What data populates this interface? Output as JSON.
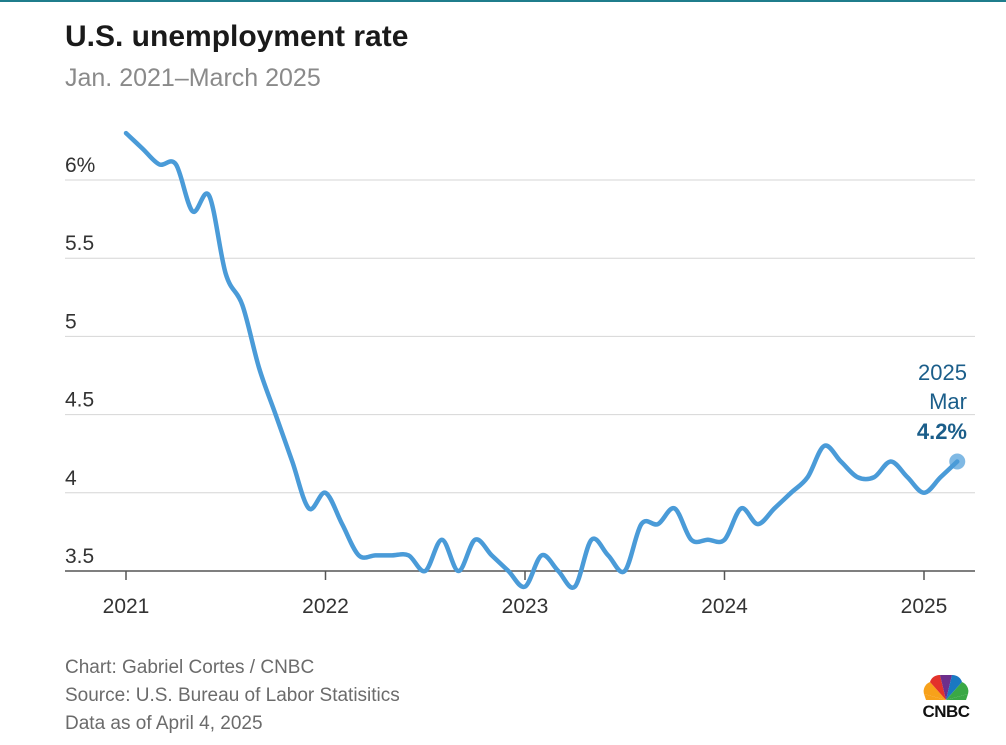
{
  "header": {
    "title": "U.S. unemployment rate",
    "subtitle": "Jan. 2021–March 2025"
  },
  "chart_data": {
    "type": "line",
    "x_unit": "month",
    "x_start": "2021-01",
    "x": [
      "2021-01",
      "2021-02",
      "2021-03",
      "2021-04",
      "2021-05",
      "2021-06",
      "2021-07",
      "2021-08",
      "2021-09",
      "2021-10",
      "2021-11",
      "2021-12",
      "2022-01",
      "2022-02",
      "2022-03",
      "2022-04",
      "2022-05",
      "2022-06",
      "2022-07",
      "2022-08",
      "2022-09",
      "2022-10",
      "2022-11",
      "2022-12",
      "2023-01",
      "2023-02",
      "2023-03",
      "2023-04",
      "2023-05",
      "2023-06",
      "2023-07",
      "2023-08",
      "2023-09",
      "2023-10",
      "2023-11",
      "2023-12",
      "2024-01",
      "2024-02",
      "2024-03",
      "2024-04",
      "2024-05",
      "2024-06",
      "2024-07",
      "2024-08",
      "2024-09",
      "2024-10",
      "2024-11",
      "2024-12",
      "2025-01",
      "2025-02",
      "2025-03"
    ],
    "series": [
      {
        "name": "",
        "color": "#4a9bd8",
        "values": [
          6.3,
          6.2,
          6.1,
          6.1,
          5.8,
          5.9,
          5.4,
          5.2,
          4.8,
          4.5,
          4.2,
          3.9,
          4.0,
          3.8,
          3.6,
          3.6,
          3.6,
          3.6,
          3.5,
          3.7,
          3.5,
          3.7,
          3.6,
          3.5,
          3.4,
          3.6,
          3.5,
          3.4,
          3.7,
          3.6,
          3.5,
          3.8,
          3.8,
          3.9,
          3.7,
          3.7,
          3.7,
          3.9,
          3.8,
          3.9,
          4.0,
          4.1,
          4.3,
          4.2,
          4.1,
          4.1,
          4.2,
          4.1,
          4.0,
          4.1,
          4.2
        ]
      }
    ],
    "ylim": [
      3.5,
      6.0
    ],
    "y_ticks": [
      3.5,
      4,
      4.5,
      5,
      5.5,
      6
    ],
    "y_tick_labels": [
      "3.5",
      "4",
      "4.5",
      "5",
      "5.5",
      "6%"
    ],
    "x_ticks": [
      "2021-01",
      "2022-01",
      "2023-01",
      "2024-01",
      "2025-01"
    ],
    "x_tick_labels": [
      "2021",
      "2022",
      "2023",
      "2024",
      "2025"
    ],
    "grid": true,
    "annotation": {
      "year": "2025",
      "month": "Mar",
      "value": "4.2%",
      "color": "#1b5e8a"
    },
    "axis_color": "#555555",
    "grid_color": "#d6d6d6"
  },
  "footer": {
    "credit": "Chart: Gabriel Cortes / CNBC",
    "source": "Source: U.S. Bureau of Labor Statisitics",
    "date": "Data as of April 4, 2025"
  },
  "logo": {
    "text": "CNBC",
    "icon": "peacock-icon"
  }
}
